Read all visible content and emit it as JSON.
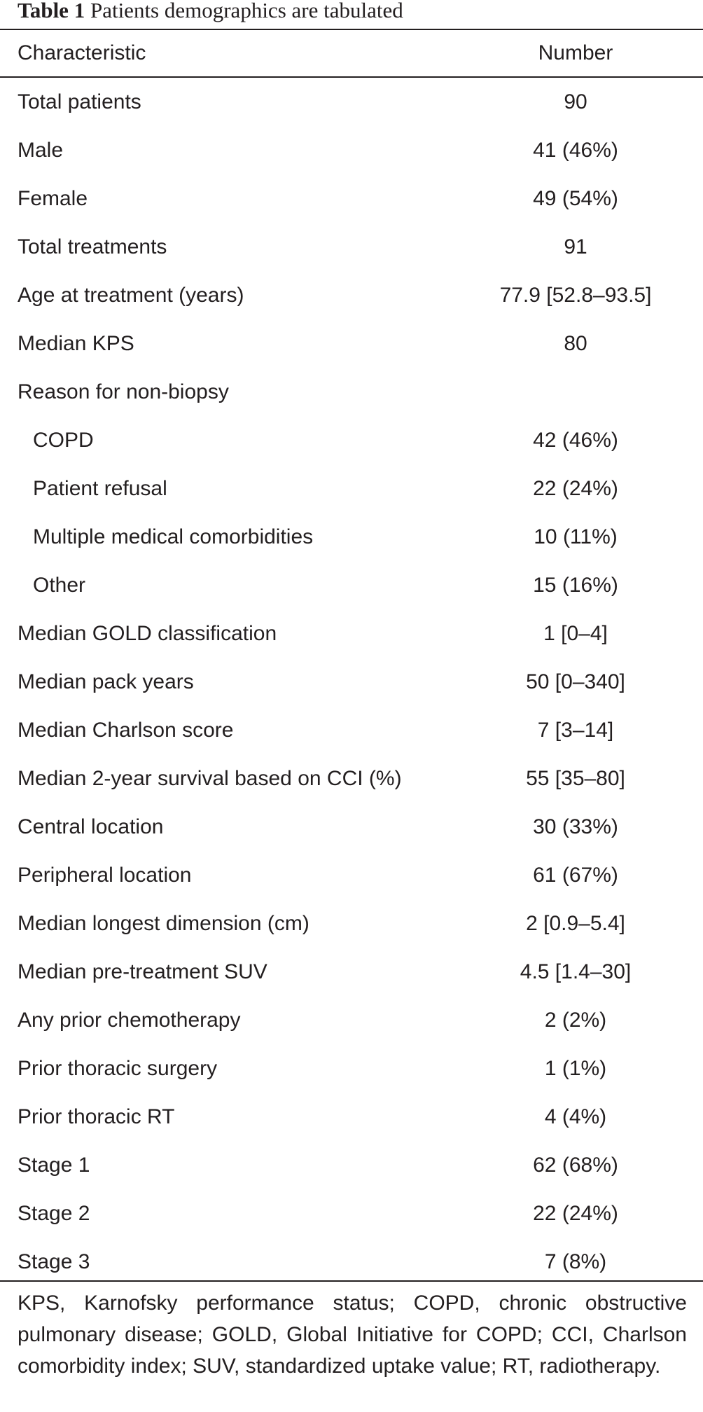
{
  "table": {
    "caption_label": "Table 1",
    "caption_text": "Patients demographics are tabulated",
    "headers": {
      "characteristic": "Characteristic",
      "number": "Number"
    },
    "rows": [
      {
        "label": "Total patients",
        "value": "90",
        "indent": false
      },
      {
        "label": "Male",
        "value": "41 (46%)",
        "indent": false
      },
      {
        "label": "Female",
        "value": "49 (54%)",
        "indent": false
      },
      {
        "label": "Total treatments",
        "value": "91",
        "indent": false
      },
      {
        "label": "Age at treatment (years)",
        "value": "77.9 [52.8–93.5]",
        "indent": false
      },
      {
        "label": "Median KPS",
        "value": "80",
        "indent": false
      },
      {
        "label": "Reason for non-biopsy",
        "value": "",
        "indent": false
      },
      {
        "label": "COPD",
        "value": "42 (46%)",
        "indent": true
      },
      {
        "label": "Patient refusal",
        "value": "22 (24%)",
        "indent": true
      },
      {
        "label": "Multiple medical comorbidities",
        "value": "10 (11%)",
        "indent": true
      },
      {
        "label": "Other",
        "value": "15 (16%)",
        "indent": true
      },
      {
        "label": "Median GOLD classification",
        "value": "1 [0–4]",
        "indent": false
      },
      {
        "label": "Median pack years",
        "value": "50 [0–340]",
        "indent": false
      },
      {
        "label": "Median Charlson score",
        "value": "7 [3–14]",
        "indent": false
      },
      {
        "label": "Median 2-year survival based on CCI (%)",
        "value": "55 [35–80]",
        "indent": false
      },
      {
        "label": "Central location",
        "value": "30 (33%)",
        "indent": false
      },
      {
        "label": "Peripheral location",
        "value": "61 (67%)",
        "indent": false
      },
      {
        "label": "Median longest dimension (cm)",
        "value": "2 [0.9–5.4]",
        "indent": false
      },
      {
        "label": "Median pre-treatment SUV",
        "value": "4.5 [1.4–30]",
        "indent": false
      },
      {
        "label": "Any prior chemotherapy",
        "value": "2 (2%)",
        "indent": false
      },
      {
        "label": "Prior thoracic surgery",
        "value": "1 (1%)",
        "indent": false
      },
      {
        "label": "Prior thoracic RT",
        "value": "4 (4%)",
        "indent": false
      },
      {
        "label": "Stage 1",
        "value": "62 (68%)",
        "indent": false
      },
      {
        "label": "Stage 2",
        "value": "22 (24%)",
        "indent": false
      },
      {
        "label": "Stage 3",
        "value": "7 (8%)",
        "indent": false
      }
    ],
    "footnote": "KPS, Karnofsky performance status; COPD, chronic obstructive pulmonary disease; GOLD, Global Initiative for COPD; CCI, Charlson comorbidity index; SUV, standardized uptake value; RT, radiotherapy."
  }
}
